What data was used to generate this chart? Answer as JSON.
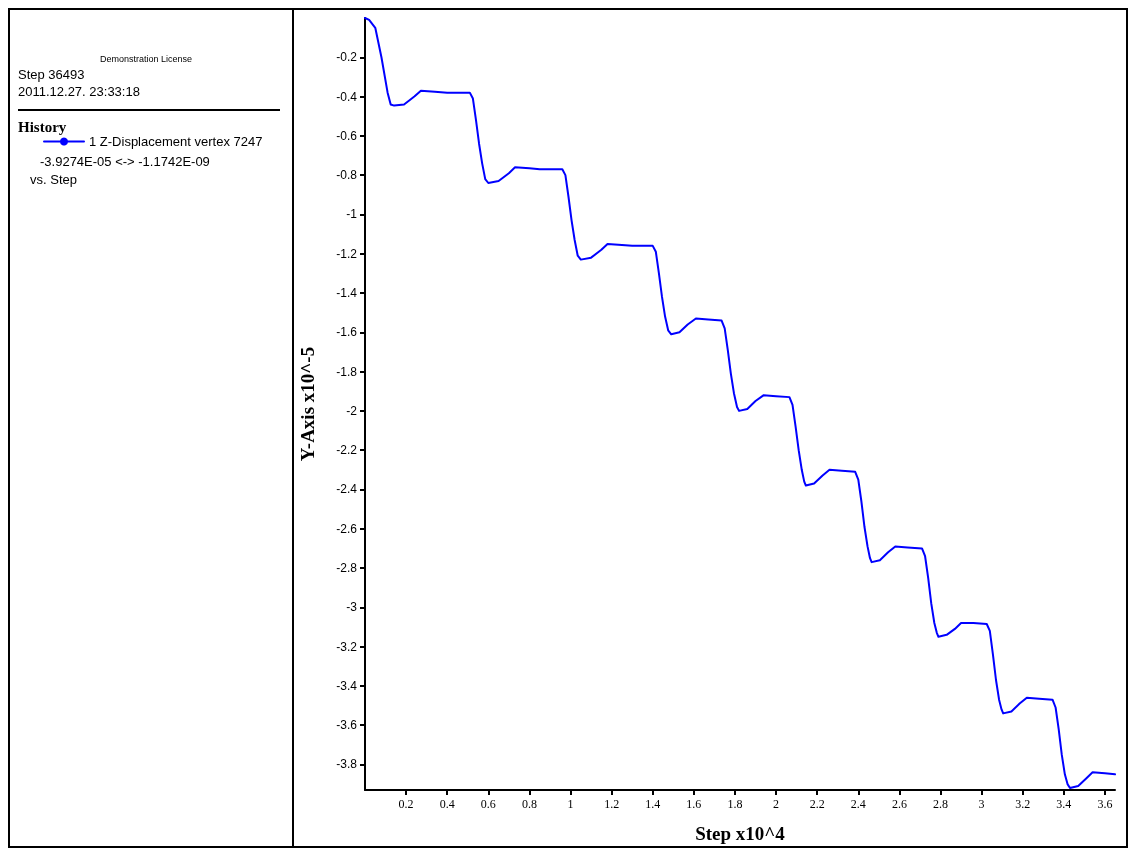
{
  "chart_data": {
    "type": "line",
    "xlabel": "Step x10^4",
    "ylabel": "Y-Axis x10^-5",
    "legend_title": "History",
    "legend": "left",
    "grid": false,
    "marker": "none",
    "line_style": "solid",
    "annotations": [
      "Demonstration License",
      "Step 36493",
      "2011.12.27. 23:33:18",
      "-3.9274E-05 <-> -1.1742E-09",
      "vs. Step"
    ],
    "xlim": [
      0,
      3.649
    ],
    "xticks": [
      0.2,
      0.4,
      0.6,
      0.8,
      1,
      1.2,
      1.4,
      1.6,
      1.8,
      2,
      2.2,
      2.4,
      2.6,
      2.8,
      3,
      3.2,
      3.4,
      3.6
    ],
    "ylim": [
      -3.93,
      0
    ],
    "yticks": [
      -0.2,
      -0.4,
      -0.6,
      -0.8,
      -1,
      -1.2,
      -1.4,
      -1.6,
      -1.8,
      -2,
      -2.2,
      -2.4,
      -2.6,
      -2.8,
      -3,
      -3.2,
      -3.4,
      -3.6,
      -3.8
    ],
    "series": [
      {
        "name": "1 Z-Displacement vertex 7247",
        "color": "#0000ff",
        "x": [
          0,
          0.02,
          0.05,
          0.08,
          0.11,
          0.125,
          0.142,
          0.19,
          0.24,
          0.272,
          0.34,
          0.4,
          0.51,
          0.525,
          0.54,
          0.555,
          0.57,
          0.585,
          0.6,
          0.65,
          0.7,
          0.73,
          0.8,
          0.85,
          0.96,
          0.975,
          0.99,
          1.005,
          1.02,
          1.035,
          1.05,
          1.1,
          1.15,
          1.18,
          1.25,
          1.3,
          1.4,
          1.415,
          1.43,
          1.445,
          1.46,
          1.475,
          1.49,
          1.53,
          1.57,
          1.61,
          1.67,
          1.735,
          1.75,
          1.765,
          1.78,
          1.795,
          1.81,
          1.82,
          1.86,
          1.9,
          1.94,
          2,
          2.065,
          2.08,
          2.095,
          2.11,
          2.125,
          2.137,
          2.145,
          2.185,
          2.225,
          2.26,
          2.32,
          2.385,
          2.4,
          2.415,
          2.43,
          2.445,
          2.457,
          2.465,
          2.505,
          2.545,
          2.58,
          2.64,
          2.71,
          2.725,
          2.74,
          2.755,
          2.77,
          2.782,
          2.79,
          2.83,
          2.87,
          2.9,
          2.96,
          3.025,
          3.04,
          3.055,
          3.07,
          3.085,
          3.097,
          3.105,
          3.145,
          3.185,
          3.22,
          3.28,
          3.345,
          3.36,
          3.375,
          3.39,
          3.405,
          3.418,
          3.43,
          3.47,
          3.51,
          3.54,
          3.6,
          3.649
        ],
        "values": [
          0,
          -0.01,
          -0.05,
          -0.2,
          -0.38,
          -0.44,
          -0.446,
          -0.44,
          -0.4,
          -0.37,
          -0.375,
          -0.38,
          -0.38,
          -0.41,
          -0.52,
          -0.64,
          -0.74,
          -0.82,
          -0.84,
          -0.83,
          -0.79,
          -0.76,
          -0.765,
          -0.77,
          -0.77,
          -0.8,
          -0.91,
          -1.03,
          -1.13,
          -1.21,
          -1.23,
          -1.22,
          -1.18,
          -1.15,
          -1.155,
          -1.16,
          -1.16,
          -1.19,
          -1.3,
          -1.42,
          -1.52,
          -1.59,
          -1.61,
          -1.6,
          -1.56,
          -1.53,
          -1.535,
          -1.54,
          -1.58,
          -1.69,
          -1.81,
          -1.91,
          -1.98,
          -2,
          -1.99,
          -1.95,
          -1.92,
          -1.925,
          -1.93,
          -1.97,
          -2.08,
          -2.2,
          -2.3,
          -2.36,
          -2.38,
          -2.37,
          -2.33,
          -2.3,
          -2.305,
          -2.31,
          -2.35,
          -2.46,
          -2.59,
          -2.69,
          -2.75,
          -2.77,
          -2.76,
          -2.72,
          -2.69,
          -2.695,
          -2.7,
          -2.74,
          -2.85,
          -2.98,
          -3.08,
          -3.13,
          -3.15,
          -3.14,
          -3.11,
          -3.08,
          -3.08,
          -3.085,
          -3.12,
          -3.24,
          -3.37,
          -3.47,
          -3.52,
          -3.54,
          -3.53,
          -3.49,
          -3.46,
          -3.465,
          -3.47,
          -3.51,
          -3.62,
          -3.75,
          -3.85,
          -3.9,
          -3.92,
          -3.91,
          -3.87,
          -3.84,
          -3.845,
          -3.85
        ]
      }
    ]
  }
}
